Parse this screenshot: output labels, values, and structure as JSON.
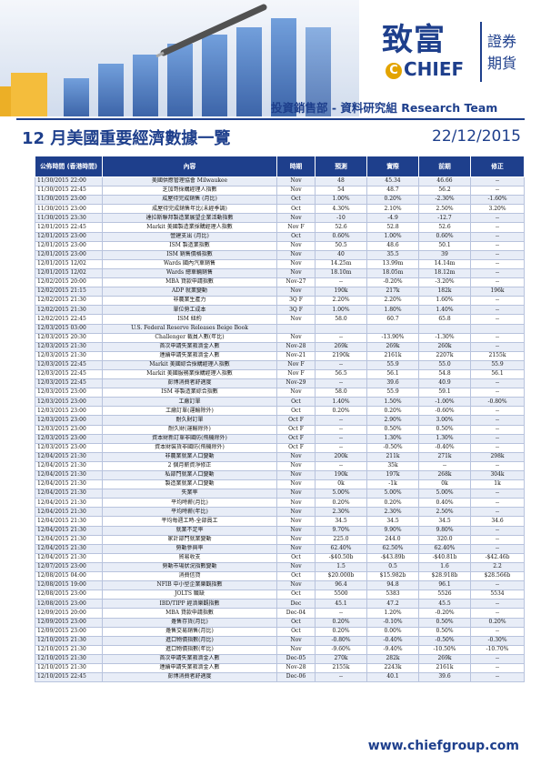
{
  "header": {
    "logo_big": "致富",
    "logo_chief": "CHIEF",
    "logo_c": "C",
    "logo_zh_1": "證券",
    "logo_zh_2": "期貨",
    "dept": "投資銷售部 - 資料研究組 Research Team"
  },
  "title": "12 月美國重要經濟數據一覽",
  "date": "22/12/2015",
  "columns": [
    "公佈時間 (香港時間)",
    "內容",
    "時期",
    "預測",
    "實際",
    "前期",
    "修正"
  ],
  "rows": [
    [
      "11/30/2015 22:00",
      "美國供應管理協會 Milwaukee",
      "Nov",
      "48",
      "45.34",
      "46.66",
      "--"
    ],
    [
      "11/30/2015 22:45",
      "芝加哥採購經理人指數",
      "Nov",
      "54",
      "48.7",
      "56.2",
      "--"
    ],
    [
      "11/30/2015 23:00",
      "成屋待完成銷售 (月比)",
      "Oct",
      "1.00%",
      "0.20%",
      "-2.30%",
      "-1.60%"
    ],
    [
      "11/30/2015 23:00",
      "成屋待完成銷售年比(未經季調)",
      "Oct",
      "4.30%",
      "2.10%",
      "2.50%",
      "3.20%"
    ],
    [
      "11/30/2015 23:30",
      "達拉斯聯邦製造業展望企業活動指數",
      "Nov",
      "-10",
      "-4.9",
      "-12.7",
      "--"
    ],
    [
      "12/01/2015 22:45",
      "Markit 美國製造業採購經理人指數",
      "Nov F",
      "52.6",
      "52.8",
      "52.6",
      "--"
    ],
    [
      "12/01/2015 23:00",
      "營建支出 (月比)",
      "Oct",
      "0.60%",
      "1.00%",
      "0.60%",
      "--"
    ],
    [
      "12/01/2015 23:00",
      "ISM 製造業指數",
      "Nov",
      "50.5",
      "48.6",
      "50.1",
      "--"
    ],
    [
      "12/01/2015 23:00",
      "ISM 銷售價格指數",
      "Nov",
      "40",
      "35.5",
      "39",
      "--"
    ],
    [
      "12/01/2015 12/02",
      "Wards 國內汽車銷售",
      "Nov",
      "14.25m",
      "13.99m",
      "14.14m",
      "--"
    ],
    [
      "12/01/2015 12/02",
      "Wards 總車輛銷售",
      "Nov",
      "18.10m",
      "18.05m",
      "18.12m",
      "--"
    ],
    [
      "12/02/2015 20:00",
      "MBA 貸款申請指數",
      "Nov-27",
      "--",
      "-0.20%",
      "-3.20%",
      "--"
    ],
    [
      "12/02/2015 21:15",
      "ADP 就業變動",
      "Nov",
      "190k",
      "217k",
      "182k",
      "196k"
    ],
    [
      "12/02/2015 21:30",
      "非農業生產力",
      "3Q F",
      "2.20%",
      "2.20%",
      "1.60%",
      "--"
    ],
    [
      "12/02/2015 21:30",
      "單位勞工成本",
      "3Q F",
      "1.00%",
      "1.80%",
      "1.40%",
      "--"
    ],
    [
      "12/02/2015 22:45",
      "ISM 紐約",
      "Nov",
      "58.0",
      "60.7",
      "65.8",
      "--"
    ],
    [
      "12/03/2015 03:00",
      "U.S. Federal Reserve Releases Beige Book",
      "",
      "",
      "",
      "",
      ""
    ],
    [
      "12/03/2015 20:30",
      "Challenger 裁員人數(年比)",
      "Nov",
      "--",
      "-13.90%",
      "-1.30%",
      "--"
    ],
    [
      "12/03/2015 21:30",
      "首次申請失業救濟金人數",
      "Nov-28",
      "269k",
      "269k",
      "260k",
      "--"
    ],
    [
      "12/03/2015 21:30",
      "連續申請失業救濟金人數",
      "Nov-21",
      "2190k",
      "2161k",
      "2207k",
      "2155k"
    ],
    [
      "12/03/2015 22:45",
      "Markit 美國綜合採購經理人指數",
      "Nov F",
      "--",
      "55.9",
      "55.0",
      "55.9"
    ],
    [
      "12/03/2015 22:45",
      "Markit 美國服務業採購經理人指數",
      "Nov F",
      "56.5",
      "56.1",
      "54.8",
      "56.1"
    ],
    [
      "12/03/2015 22:45",
      "彭博消費者舒適度",
      "Nov-29",
      "--",
      "39.6",
      "40.9",
      "--"
    ],
    [
      "12/03/2015 23:00",
      "ISM 非製造業綜合指數",
      "Nov",
      "58.0",
      "55.9",
      "59.1",
      "--"
    ],
    [
      "12/03/2015 23:00",
      "工廠訂單",
      "Oct",
      "1.40%",
      "1.50%",
      "-1.00%",
      "-0.80%"
    ],
    [
      "12/03/2015 23:00",
      "工廠訂單(運輸除外)",
      "Oct",
      "0.20%",
      "0.20%",
      "-0.60%",
      "--"
    ],
    [
      "12/03/2015 23:00",
      "耐久財訂單",
      "Oct F",
      "--",
      "2.90%",
      "3.00%",
      "--"
    ],
    [
      "12/03/2015 23:00",
      "耐久財(運輸除外)",
      "Oct F",
      "--",
      "0.50%",
      "0.50%",
      "--"
    ],
    [
      "12/03/2015 23:00",
      "資本財新訂單非國防(飛機除外)",
      "Oct F",
      "--",
      "1.30%",
      "1.30%",
      "--"
    ],
    [
      "12/03/2015 23:00",
      "資本財裝貨非國防(飛機除外)",
      "Oct F",
      "--",
      "-0.50%",
      "-0.40%",
      "--"
    ],
    [
      "12/04/2015 21:30",
      "非農業就業人口變動",
      "Nov",
      "200k",
      "211k",
      "271k",
      "298k"
    ],
    [
      "12/04/2015 21:30",
      "2 個月薪資淨修正",
      "Nov",
      "--",
      "35k",
      "--",
      "--"
    ],
    [
      "12/04/2015 21:30",
      "私部門就業人口變動",
      "Nov",
      "190k",
      "197k",
      "268k",
      "304k"
    ],
    [
      "12/04/2015 21:30",
      "製造業就業人口變動",
      "Nov",
      "0k",
      "-1k",
      "0k",
      "1k"
    ],
    [
      "12/04/2015 21:30",
      "失業率",
      "Nov",
      "5.00%",
      "5.00%",
      "5.00%",
      "--"
    ],
    [
      "12/04/2015 21:30",
      "平均時薪(月比)",
      "Nov",
      "0.20%",
      "0.20%",
      "0.40%",
      "--"
    ],
    [
      "12/04/2015 21:30",
      "平均時薪(年比)",
      "Nov",
      "2.30%",
      "2.30%",
      "2.50%",
      "--"
    ],
    [
      "12/04/2015 21:30",
      "平均每週工時-全部員工",
      "Nov",
      "34.5",
      "34.5",
      "34.5",
      "34.6"
    ],
    [
      "12/04/2015 21:30",
      "就業不足率",
      "Nov",
      "9.70%",
      "9.90%",
      "9.80%",
      "--"
    ],
    [
      "12/04/2015 21:30",
      "家計部門就業變動",
      "Nov",
      "225.0",
      "244.0",
      "320.0",
      "--"
    ],
    [
      "12/04/2015 21:30",
      "勞動參與率",
      "Nov",
      "62.40%",
      "62.50%",
      "62.40%",
      "--"
    ],
    [
      "12/04/2015 21:30",
      "貿易收支",
      "Oct",
      "-$40.50b",
      "-$43.89b",
      "-$40.81b",
      "-$42.46b"
    ],
    [
      "12/07/2015 23:00",
      "勞動市場狀況指數變動",
      "Nov",
      "1.5",
      "0.5",
      "1.6",
      "2.2"
    ],
    [
      "12/08/2015 04:00",
      "消費信貸",
      "Oct",
      "$20.000b",
      "$15.982b",
      "$28.918b",
      "$28.566b"
    ],
    [
      "12/08/2015 19:00",
      "NFIB 中小型企業樂觀指數",
      "Nov",
      "96.4",
      "94.8",
      "96.1",
      "--"
    ],
    [
      "12/08/2015 23:00",
      "JOLTS 職缺",
      "Oct",
      "5500",
      "5383",
      "5526",
      "5534"
    ],
    [
      "12/08/2015 23:00",
      "IBD/TIPP 經濟樂觀指數",
      "Dec",
      "45.1",
      "47.2",
      "45.5",
      "--"
    ],
    [
      "12/09/2015 20:00",
      "MBA 貸款申請指數",
      "Dec-04",
      "--",
      "1.20%",
      "-0.20%",
      "--"
    ],
    [
      "12/09/2015 23:00",
      "躉售存貨(月比)",
      "Oct",
      "0.20%",
      "-0.10%",
      "0.50%",
      "0.20%"
    ],
    [
      "12/09/2015 23:00",
      "躉售交易銷售(月比)",
      "Oct",
      "0.20%",
      "0.00%",
      "0.50%",
      "--"
    ],
    [
      "12/10/2015 21:30",
      "進口物價指數(月比)",
      "Nov",
      "-0.80%",
      "-0.40%",
      "-0.50%",
      "-0.30%"
    ],
    [
      "12/10/2015 21:30",
      "進口物價指數(年比)",
      "Nov",
      "-9.60%",
      "-9.40%",
      "-10.50%",
      "-10.70%"
    ],
    [
      "12/10/2015 21:30",
      "首次申請失業救濟金人數",
      "Dec-05",
      "270k",
      "282k",
      "269k",
      "--"
    ],
    [
      "12/10/2015 21:30",
      "連續申請失業救濟金人數",
      "Nov-28",
      "2155k",
      "2243k",
      "2161k",
      "--"
    ],
    [
      "12/10/2015 22:45",
      "彭博消費者舒適度",
      "Dec-06",
      "--",
      "40.1",
      "39.6",
      "--"
    ]
  ],
  "footer": {
    "website": "www.chiefgroup.com"
  },
  "colors": {
    "brand_blue": "#1e3f8c",
    "brand_gold": "#e3a400",
    "row_alt": "#e8edf7"
  }
}
